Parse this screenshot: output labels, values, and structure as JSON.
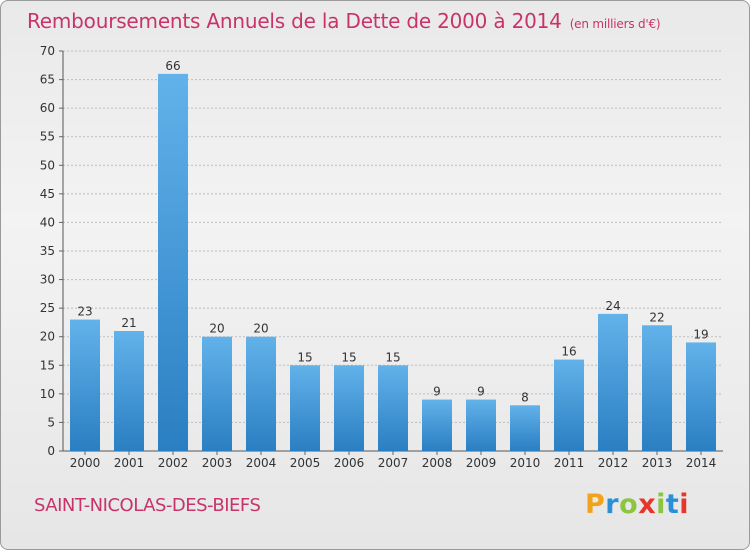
{
  "header": {
    "title": "Remboursements Annuels de la Dette de 2000 à 2014",
    "unit": "(en milliers d'€)"
  },
  "footer": {
    "commune": "SAINT-NICOLAS-DES-BIEFS",
    "logo": "Proxiti"
  },
  "colors": {
    "title": "#c8346a",
    "bar_top": "#62b2ea",
    "bar_bottom": "#2a7fc2",
    "logo_letters": [
      "#f3a21b",
      "#2b8fd6",
      "#8cc63f",
      "#e6352b",
      "#8cc63f",
      "#2b8fd6",
      "#e6352b"
    ]
  },
  "chart_data": {
    "type": "bar",
    "categories": [
      "2000",
      "2001",
      "2002",
      "2003",
      "2004",
      "2005",
      "2006",
      "2007",
      "2008",
      "2009",
      "2010",
      "2011",
      "2012",
      "2013",
      "2014"
    ],
    "values": [
      23,
      21,
      66,
      20,
      20,
      15,
      15,
      15,
      9,
      9,
      8,
      16,
      24,
      22,
      19
    ],
    "ylim": [
      0,
      70
    ],
    "yticks": [
      0,
      5,
      10,
      15,
      20,
      25,
      30,
      35,
      40,
      45,
      50,
      55,
      60,
      65,
      70
    ],
    "grid": true
  }
}
